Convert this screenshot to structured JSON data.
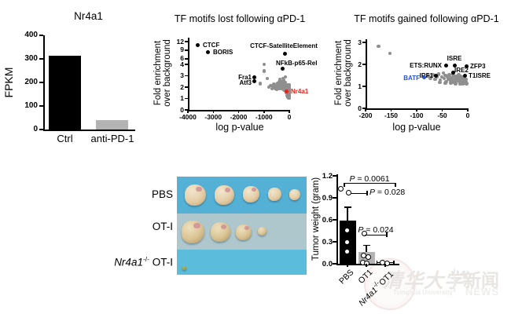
{
  "watermark": {
    "cn": "清华大学",
    "en": "Tsinghua University",
    "news_cn": "新闻",
    "news_en": "NEWS"
  },
  "photo": {
    "bg_top": "#54b1d5",
    "bg_strip": "#aec7cc",
    "bg_bottom": "#5cbcdc",
    "tumor_color_main": "#e3cda6",
    "tumor_color_edge": "#c09a6c",
    "tumor_color_small": "#93a04e",
    "rows": [
      {
        "label": {
          "text": "PBS"
        },
        "tumor_diameters": [
          27,
          25,
          21,
          17,
          14
        ]
      },
      {
        "label": {
          "text": "OT-I"
        },
        "tumor_diameters": [
          29,
          25,
          20,
          11
        ]
      },
      {
        "label": {
          "gene": "Nr4a1",
          "sup": "-/-",
          "rest": " OT-I"
        },
        "tumor_diameters": [
          5
        ]
      }
    ]
  },
  "chart_data": [
    {
      "type": "bar",
      "title": "Nr4a1",
      "ylabel": "FPKM",
      "categories": [
        "Ctrl",
        "anti-PD-1"
      ],
      "values": [
        315,
        40
      ],
      "bar_colors": [
        "#000000",
        "#b3b3b3"
      ],
      "yticks": [
        0,
        100,
        200,
        300,
        400
      ],
      "ylim": [
        0,
        400
      ]
    },
    {
      "type": "scatter",
      "title": "TF motifs lost following αPD-1",
      "xlabel": "log p-value",
      "ylabel_line1": "Fold enrichment",
      "ylabel_line2": "over background",
      "xticks": [
        -4000,
        -3000,
        -2000,
        -1000,
        0
      ],
      "yticks": [
        0,
        1,
        2,
        3,
        4,
        6,
        9,
        12
      ],
      "xlim": [
        -4000,
        0
      ],
      "ylim": [
        0,
        12
      ],
      "y_axis_break": true,
      "point_color": "#8f8f8f",
      "labeled_points": [
        {
          "name": "CTCF",
          "x": -3600,
          "y": 10.8,
          "color": "#000000"
        },
        {
          "name": "BORIS",
          "x": -3200,
          "y": 8.2,
          "color": "#000000"
        },
        {
          "name": "CTCF-SatelliteElement",
          "x": -160,
          "y": 7.8,
          "color": "#000000"
        },
        {
          "name": "NFkB-p65-Rel",
          "x": -250,
          "y": 3.6,
          "color": "#000000"
        },
        {
          "name": "Fra1",
          "x": -1390,
          "y": 2.83,
          "color": "#000000"
        },
        {
          "name": "Atf3",
          "x": -1390,
          "y": 2.52,
          "color": "#000000"
        },
        {
          "name": "Nr4a1",
          "x": -100,
          "y": 1.65,
          "color": "#ed2015"
        }
      ],
      "background_points": [
        [
          -1150,
          2.3
        ],
        [
          -1000,
          4.05
        ],
        [
          -1000,
          3.4
        ],
        [
          -870,
          2.75
        ],
        [
          -800,
          2.0
        ],
        [
          -730,
          2.15
        ],
        [
          -680,
          1.85
        ],
        [
          -640,
          2.0
        ],
        [
          -600,
          2.25
        ],
        [
          -560,
          1.9
        ],
        [
          -530,
          2.05
        ],
        [
          -500,
          1.8
        ],
        [
          -470,
          2.3
        ],
        [
          -450,
          2.0
        ],
        [
          -430,
          2.15
        ],
        [
          -410,
          1.9
        ],
        [
          -390,
          2.45
        ],
        [
          -370,
          2.7
        ],
        [
          -350,
          2.0
        ],
        [
          -330,
          2.2
        ],
        [
          -310,
          1.85
        ],
        [
          -290,
          2.5
        ],
        [
          -270,
          2.05
        ],
        [
          -255,
          2.3
        ],
        [
          -240,
          1.9
        ],
        [
          -225,
          2.1
        ],
        [
          -210,
          2.6
        ],
        [
          -195,
          1.75
        ],
        [
          -180,
          2.2
        ],
        [
          -165,
          1.95
        ],
        [
          -150,
          2.4
        ],
        [
          -150,
          2.9
        ],
        [
          -140,
          1.7
        ],
        [
          -130,
          2.0
        ],
        [
          -120,
          1.55
        ],
        [
          -110,
          1.8
        ],
        [
          -100,
          2.1
        ],
        [
          -90,
          1.45
        ],
        [
          -80,
          1.7
        ],
        [
          -70,
          1.25
        ],
        [
          -60,
          1.55
        ],
        [
          -60,
          2.2
        ],
        [
          -50,
          1.9
        ],
        [
          -45,
          1.1
        ],
        [
          -40,
          1.4
        ],
        [
          -35,
          1.65
        ],
        [
          -30,
          1.2
        ],
        [
          -25,
          1.5
        ],
        [
          -20,
          1.05
        ],
        [
          -18,
          1.75
        ],
        [
          -15,
          1.3
        ],
        [
          -12,
          1.6
        ],
        [
          -12,
          2.1
        ],
        [
          -10,
          1.15
        ],
        [
          -10,
          1.9
        ],
        [
          -8,
          1.45
        ],
        [
          -8,
          2.2
        ],
        [
          -6,
          1.7
        ],
        [
          -5,
          1.05
        ],
        [
          -4,
          1.5
        ],
        [
          -3,
          1.25
        ],
        [
          -250,
          2.75
        ]
      ]
    },
    {
      "type": "scatter",
      "title": "TF motifs gained following αPD-1",
      "xlabel": "log p-value",
      "ylabel_line1": "Fold enrichment",
      "ylabel_line2": "over background",
      "xticks": [
        -200,
        -150,
        -100,
        -50,
        0
      ],
      "yticks": [
        0,
        1,
        2,
        3
      ],
      "xlim": [
        -200,
        0
      ],
      "ylim": [
        0,
        3
      ],
      "point_color": "#8f8f8f",
      "labeled_points": [
        {
          "name": "ETS:RUNX",
          "x": -43,
          "y": 1.95,
          "color": "#000000"
        },
        {
          "name": "ISRE",
          "x": -26,
          "y": 1.95,
          "color": "#000000"
        },
        {
          "name": "ZFP3",
          "x": -3,
          "y": 1.9,
          "color": "#000000"
        },
        {
          "name": "IRE2",
          "x": -28,
          "y": 1.64,
          "color": "#000000"
        },
        {
          "name": "IRF1",
          "x": -62,
          "y": 1.5,
          "color": "#000000"
        },
        {
          "name": "T1ISRE",
          "x": -5,
          "y": 1.5,
          "color": "#000000"
        },
        {
          "name": "BATF",
          "x": -85,
          "y": 1.4,
          "color": "#2953d1"
        }
      ],
      "background_points": [
        [
          -175,
          2.82
        ],
        [
          -152,
          2.5
        ],
        [
          -78,
          1.48
        ],
        [
          -73,
          1.38
        ],
        [
          -68,
          1.52
        ],
        [
          -64,
          1.32
        ],
        [
          -60,
          1.45
        ],
        [
          -57,
          1.56
        ],
        [
          -54,
          1.28
        ],
        [
          -51,
          1.42
        ],
        [
          -48,
          1.6
        ],
        [
          -46,
          1.35
        ],
        [
          -44,
          1.5
        ],
        [
          -42,
          1.22
        ],
        [
          -40,
          1.44
        ],
        [
          -38,
          1.34
        ],
        [
          -36,
          1.52
        ],
        [
          -34,
          1.26
        ],
        [
          -32,
          1.4
        ],
        [
          -30,
          1.3
        ],
        [
          -28,
          1.48
        ],
        [
          -27,
          1.18
        ],
        [
          -25,
          1.36
        ],
        [
          -23,
          1.44
        ],
        [
          -22,
          1.26
        ],
        [
          -20,
          1.4
        ],
        [
          -19,
          1.3
        ],
        [
          -17,
          1.22
        ],
        [
          -16,
          1.36
        ],
        [
          -14,
          1.46
        ],
        [
          -13,
          1.28
        ],
        [
          -12,
          1.38
        ],
        [
          -11,
          1.18
        ],
        [
          -10,
          1.3
        ],
        [
          -9,
          1.42
        ],
        [
          -8,
          1.22
        ],
        [
          -7,
          1.34
        ],
        [
          -6,
          1.14
        ],
        [
          -5,
          1.28
        ],
        [
          -4,
          1.2
        ],
        [
          -3,
          1.32
        ],
        [
          -2,
          1.12
        ],
        [
          -15,
          1.1
        ],
        [
          -24,
          1.12
        ],
        [
          -33,
          1.16
        ],
        [
          -44,
          1.14
        ],
        [
          -55,
          1.18
        ],
        [
          -9,
          1.1
        ],
        [
          -18,
          1.52
        ],
        [
          -29,
          1.56
        ]
      ]
    },
    {
      "type": "bar-scatter",
      "title": "",
      "ylabel": "Tumor weight (gram)",
      "yticks": [
        "0.0",
        "0.3",
        "0.6",
        "0.9",
        "1.2"
      ],
      "ylim": [
        0,
        1.2
      ],
      "groups": [
        {
          "label": {
            "text": "PBS"
          },
          "bar": 0.59,
          "err": 0.18,
          "points": [
            1.02,
            0.97,
            0.46,
            0.3,
            0.17
          ],
          "color": "#000000"
        },
        {
          "label": {
            "text": "OT1"
          },
          "bar": 0.16,
          "err": 0.09,
          "points": [
            0.41,
            0.11,
            0.09,
            0.02,
            0.01
          ],
          "color": "#b3b3b3"
        },
        {
          "label": {
            "gene": "Nr4a1",
            "sup": "-/-",
            "rest": "OT1"
          },
          "bar": 0.02,
          "err": 0.01,
          "points": [
            0.02,
            0.01
          ],
          "color": "#ffffff"
        }
      ],
      "pvalues": [
        {
          "sym": "P",
          "text": " = 0.0061"
        },
        {
          "sym": "P",
          "text": " = 0.028"
        },
        {
          "sym": "P",
          "text": " = 0.024"
        }
      ]
    }
  ]
}
